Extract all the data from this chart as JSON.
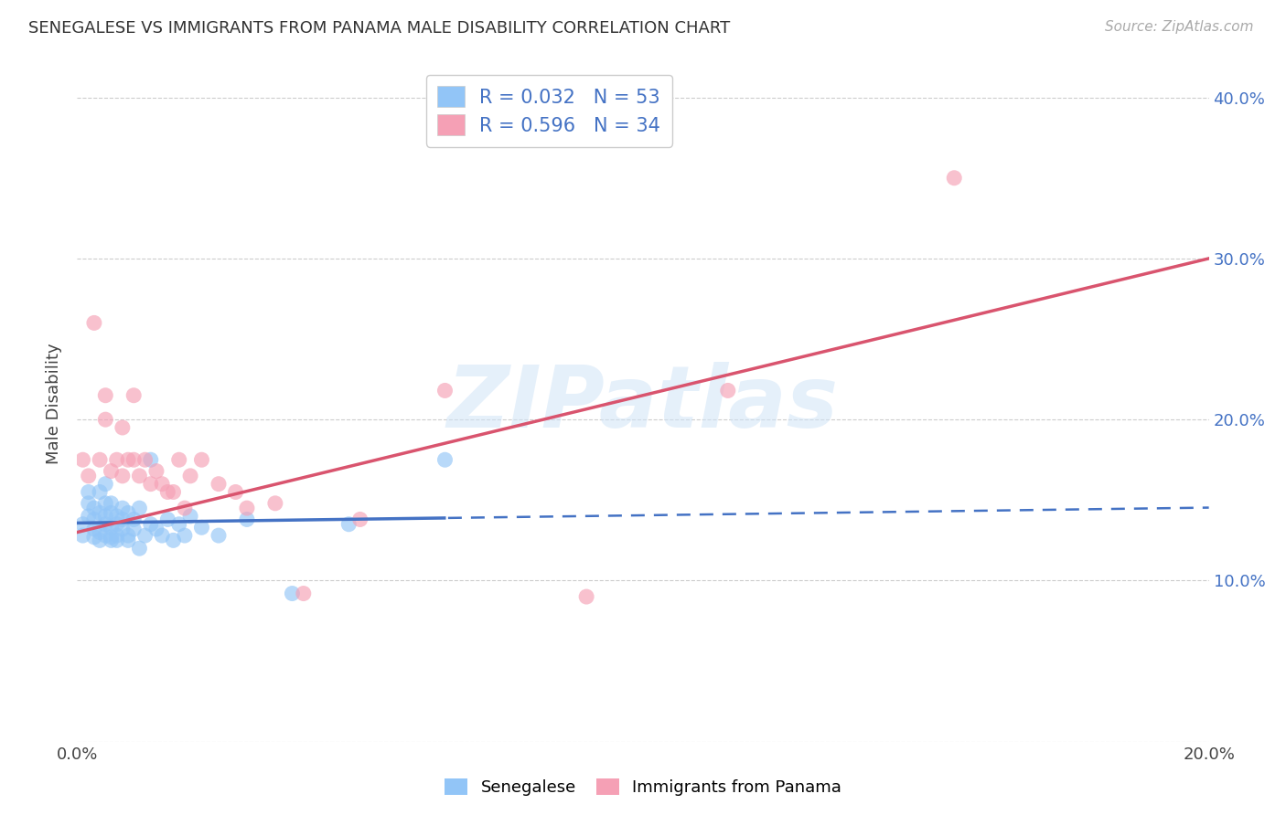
{
  "title": "SENEGALESE VS IMMIGRANTS FROM PANAMA MALE DISABILITY CORRELATION CHART",
  "source": "Source: ZipAtlas.com",
  "ylabel": "Male Disability",
  "xlim": [
    0.0,
    0.2
  ],
  "ylim": [
    0.0,
    0.42
  ],
  "xtick_positions": [
    0.0,
    0.04,
    0.08,
    0.12,
    0.16,
    0.2
  ],
  "xtick_labels": [
    "0.0%",
    "",
    "",
    "",
    "",
    "20.0%"
  ],
  "ytick_positions": [
    0.0,
    0.1,
    0.2,
    0.3,
    0.4
  ],
  "ytick_labels_right": [
    "",
    "10.0%",
    "20.0%",
    "30.0%",
    "40.0%"
  ],
  "watermark_text": "ZIPatlas",
  "blue_color": "#92c5f7",
  "pink_color": "#f5a0b5",
  "blue_line_color": "#4472c4",
  "pink_line_color": "#d9546e",
  "blue_line_solid_end": 0.065,
  "blue_line_dash_start": 0.065,
  "background_color": "#ffffff",
  "grid_color": "#cccccc",
  "senegalese_x": [
    0.001,
    0.001,
    0.002,
    0.002,
    0.002,
    0.003,
    0.003,
    0.003,
    0.003,
    0.004,
    0.004,
    0.004,
    0.004,
    0.005,
    0.005,
    0.005,
    0.005,
    0.005,
    0.006,
    0.006,
    0.006,
    0.006,
    0.006,
    0.007,
    0.007,
    0.007,
    0.007,
    0.008,
    0.008,
    0.008,
    0.009,
    0.009,
    0.009,
    0.01,
    0.01,
    0.011,
    0.011,
    0.012,
    0.013,
    0.013,
    0.014,
    0.015,
    0.016,
    0.017,
    0.018,
    0.019,
    0.02,
    0.022,
    0.025,
    0.03,
    0.038,
    0.048,
    0.065
  ],
  "senegalese_y": [
    0.135,
    0.128,
    0.14,
    0.155,
    0.148,
    0.132,
    0.127,
    0.145,
    0.138,
    0.13,
    0.142,
    0.155,
    0.125,
    0.14,
    0.128,
    0.135,
    0.148,
    0.16,
    0.127,
    0.133,
    0.142,
    0.148,
    0.125,
    0.135,
    0.128,
    0.14,
    0.125,
    0.132,
    0.138,
    0.145,
    0.128,
    0.142,
    0.125,
    0.132,
    0.138,
    0.145,
    0.12,
    0.128,
    0.175,
    0.135,
    0.132,
    0.128,
    0.138,
    0.125,
    0.135,
    0.128,
    0.14,
    0.133,
    0.128,
    0.138,
    0.092,
    0.135,
    0.175
  ],
  "panama_x": [
    0.001,
    0.002,
    0.003,
    0.004,
    0.005,
    0.005,
    0.006,
    0.007,
    0.008,
    0.008,
    0.009,
    0.01,
    0.01,
    0.011,
    0.012,
    0.013,
    0.014,
    0.015,
    0.016,
    0.017,
    0.018,
    0.019,
    0.02,
    0.022,
    0.025,
    0.028,
    0.03,
    0.035,
    0.04,
    0.05,
    0.065,
    0.09,
    0.115,
    0.155
  ],
  "panama_y": [
    0.175,
    0.165,
    0.26,
    0.175,
    0.2,
    0.215,
    0.168,
    0.175,
    0.165,
    0.195,
    0.175,
    0.175,
    0.215,
    0.165,
    0.175,
    0.16,
    0.168,
    0.16,
    0.155,
    0.155,
    0.175,
    0.145,
    0.165,
    0.175,
    0.16,
    0.155,
    0.145,
    0.148,
    0.092,
    0.138,
    0.218,
    0.09,
    0.218,
    0.35
  ]
}
